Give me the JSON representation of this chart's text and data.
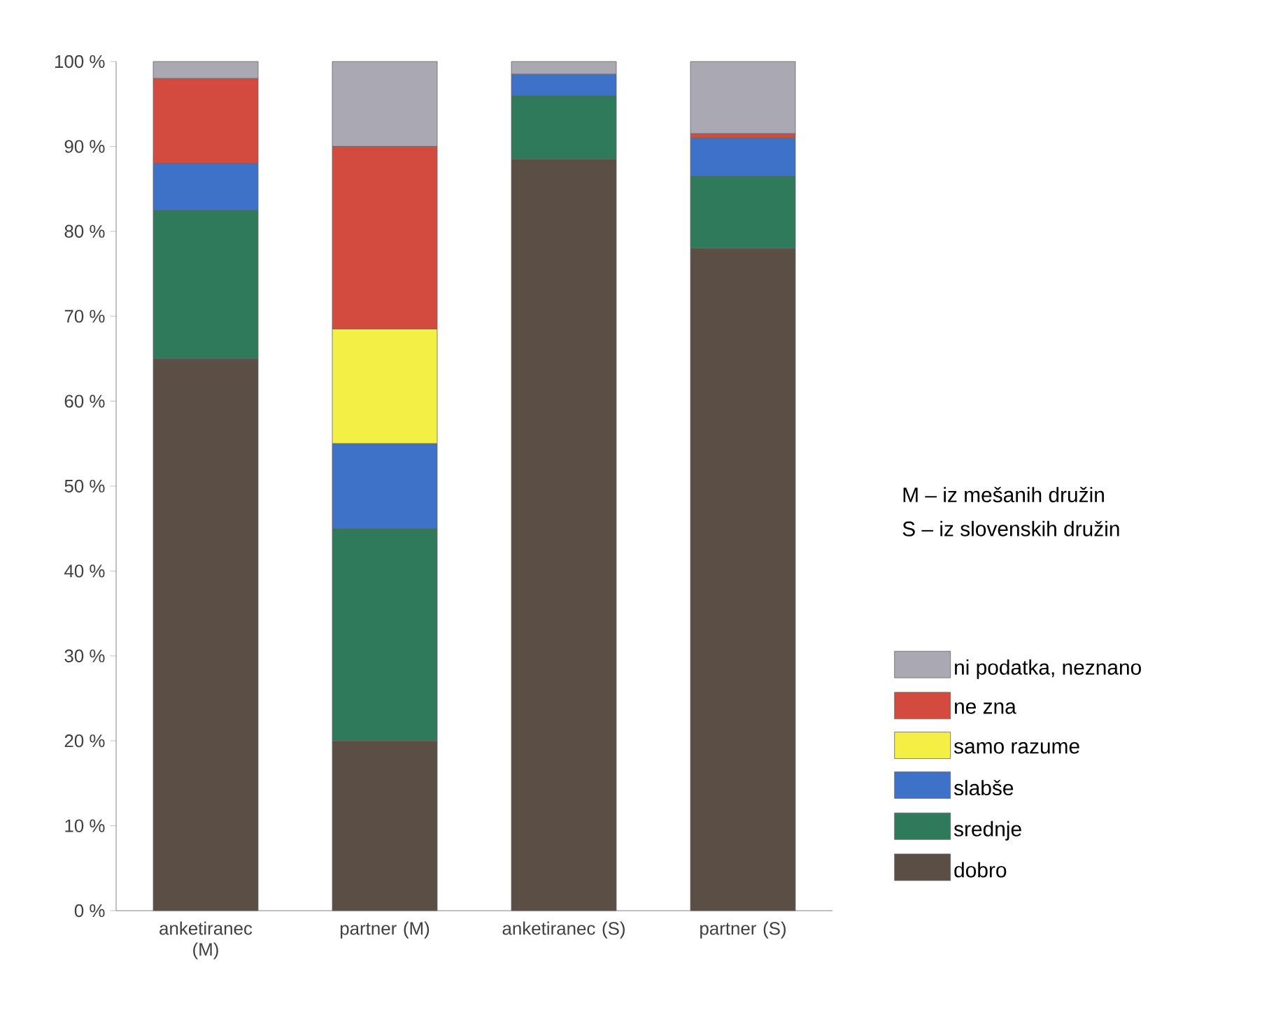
{
  "chart_data": {
    "type": "bar",
    "stacked": true,
    "categories": [
      "anketiranec (M)",
      "partner (M)",
      "anketiranec (S)",
      "partner (S)"
    ],
    "series": [
      {
        "name": "dobro",
        "color": "#5a4e45",
        "values": [
          65,
          20,
          88.5,
          78
        ]
      },
      {
        "name": "srednje",
        "color": "#2f7a5a",
        "values": [
          17.5,
          25,
          7.5,
          8.5
        ]
      },
      {
        "name": "slabše",
        "color": "#3e72c8",
        "values": [
          5.5,
          10,
          2.5,
          4.5
        ]
      },
      {
        "name": "samo razume",
        "color": "#f3ef45",
        "values": [
          0,
          13.5,
          0,
          0
        ]
      },
      {
        "name": "ne zna",
        "color": "#d24b3e",
        "values": [
          10,
          21.5,
          0,
          0.5
        ]
      },
      {
        "name": "ni podatka, neznano",
        "color": "#a9a8b3",
        "values": [
          2,
          10,
          1.5,
          8.5
        ]
      }
    ],
    "ylim": [
      0,
      100
    ],
    "yticks": [
      {
        "value": 0,
        "label": "0 %"
      },
      {
        "value": 10,
        "label": "10 %"
      },
      {
        "value": 20,
        "label": "20 %"
      },
      {
        "value": 30,
        "label": "30 %"
      },
      {
        "value": 40,
        "label": "40 %"
      },
      {
        "value": 50,
        "label": "50 %"
      },
      {
        "value": 60,
        "label": "60 %"
      },
      {
        "value": 70,
        "label": "70 %"
      },
      {
        "value": 80,
        "label": "80 %"
      },
      {
        "value": 90,
        "label": "90 %"
      },
      {
        "value": 100,
        "label": "100 %"
      }
    ],
    "legend": "right",
    "annotations": [
      "M – iz mešanih družin",
      "S – iz slovenskih družin"
    ]
  }
}
